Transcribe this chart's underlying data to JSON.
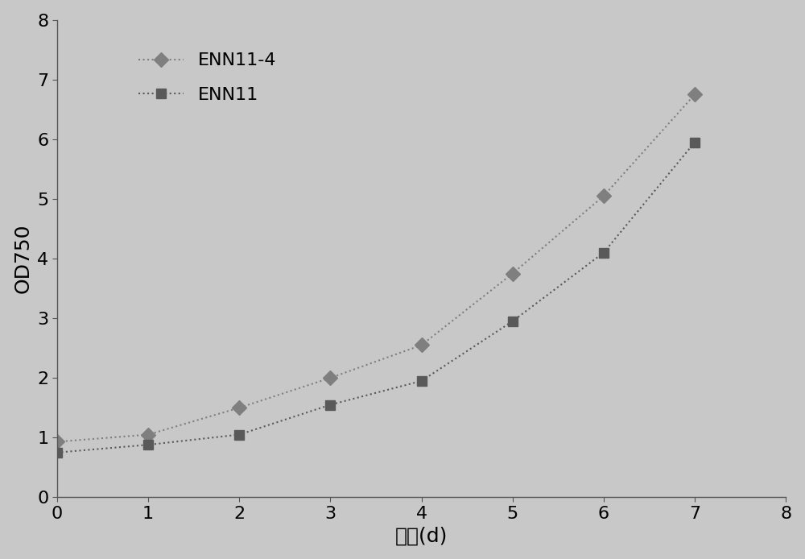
{
  "enn11_4_x": [
    0,
    1,
    2,
    3,
    4,
    5,
    6,
    7
  ],
  "enn11_4_y": [
    0.93,
    1.05,
    1.5,
    2.0,
    2.55,
    3.75,
    5.05,
    6.75
  ],
  "enn11_x": [
    0,
    1,
    2,
    3,
    4,
    5,
    6,
    7
  ],
  "enn11_y": [
    0.75,
    0.88,
    1.05,
    1.55,
    1.95,
    2.95,
    4.1,
    5.95
  ],
  "enn11_4_label": "ENN11-4",
  "enn11_label": "ENN11",
  "xlabel": "时间(d)",
  "ylabel": "OD750",
  "xlim": [
    0,
    8
  ],
  "ylim": [
    0,
    8
  ],
  "xticks": [
    0,
    1,
    2,
    3,
    4,
    5,
    6,
    7,
    8
  ],
  "yticks": [
    0,
    1,
    2,
    3,
    4,
    5,
    6,
    7,
    8
  ],
  "line1_color": "#7f7f7f",
  "line2_color": "#595959",
  "marker1_color": "#7f7f7f",
  "marker2_color": "#595959",
  "background_color": "#c8c8c8",
  "plot_bg_color": "#c8c8c8",
  "legend_fontsize": 16,
  "tick_fontsize": 16,
  "label_fontsize": 18
}
